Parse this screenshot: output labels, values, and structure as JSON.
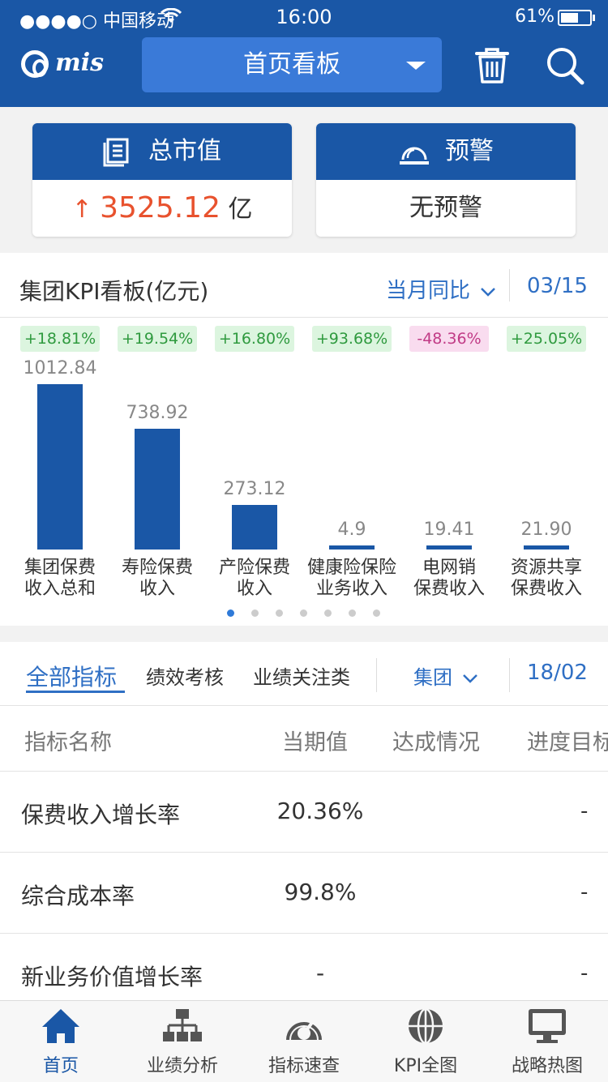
{
  "status_bar": {
    "carrier": "●●●●○ 中国移动",
    "time": "16:00",
    "battery": "61%",
    "battery_level": 0.61
  },
  "header": {
    "logo_text": "mis",
    "dashboard_select": "首页看板"
  },
  "cards": {
    "market_value": {
      "title": "总市值",
      "arrow": "↑",
      "value": "3525.12",
      "unit": "亿"
    },
    "warning": {
      "title": "预警",
      "value": "无预警"
    }
  },
  "kpi_board": {
    "title": "集团KPI看板(亿元)",
    "filter": "当月同比",
    "date": "03/15"
  },
  "chart_data": {
    "type": "bar",
    "categories": [
      "集团保费收入总和",
      "寿险保费收入",
      "产险保费收入",
      "健康险保险业务收入",
      "电网销保费收入",
      "资源共享保费收入"
    ],
    "category_lines": [
      [
        "集团保费",
        "收入总和"
      ],
      [
        "寿险保费",
        "收入"
      ],
      [
        "产险保费",
        "收入"
      ],
      [
        "健康险保险",
        "业务收入"
      ],
      [
        "电网销",
        "保费收入"
      ],
      [
        "资源共享",
        "保费收入"
      ]
    ],
    "values": [
      1012.84,
      738.92,
      273.12,
      4.9,
      19.41,
      21.9
    ],
    "value_labels": [
      "1012.84",
      "738.92",
      "273.12",
      "4.9",
      "19.41",
      "21.90"
    ],
    "changes": [
      "+18.81%",
      "+19.54%",
      "+16.80%",
      "+93.68%",
      "-48.36%",
      "+25.05%"
    ],
    "change_colors": {
      "positive": "#2f9a3f",
      "negative": "#c13b86"
    },
    "bar_color": "#1a57a6",
    "ylim": [
      0,
      1012.84
    ],
    "grid": false,
    "legend": "none",
    "page_count": 7,
    "active_page": 1
  },
  "indicators": {
    "tabs": [
      "全部指标",
      "绩效考核",
      "业绩关注类"
    ],
    "active_tab": "全部指标",
    "scope": "集团",
    "date": "18/02",
    "columns": [
      "指标名称",
      "当期值",
      "达成情况",
      "进度目标"
    ],
    "rows": [
      {
        "name": "保费收入增长率",
        "value": "20.36%",
        "progress": "-"
      },
      {
        "name": "综合成本率",
        "value": "99.8%",
        "progress": "-"
      },
      {
        "name": "新业务价值增长率",
        "value": "-",
        "progress": "-"
      }
    ]
  },
  "tabbar": {
    "items": [
      "首页",
      "业绩分析",
      "指标速查",
      "KPI全图",
      "战略热图"
    ],
    "active": "首页"
  },
  "colors": {
    "brand": "#1a57a6",
    "accent": "#2f6fc4",
    "up": "#e8522e"
  }
}
